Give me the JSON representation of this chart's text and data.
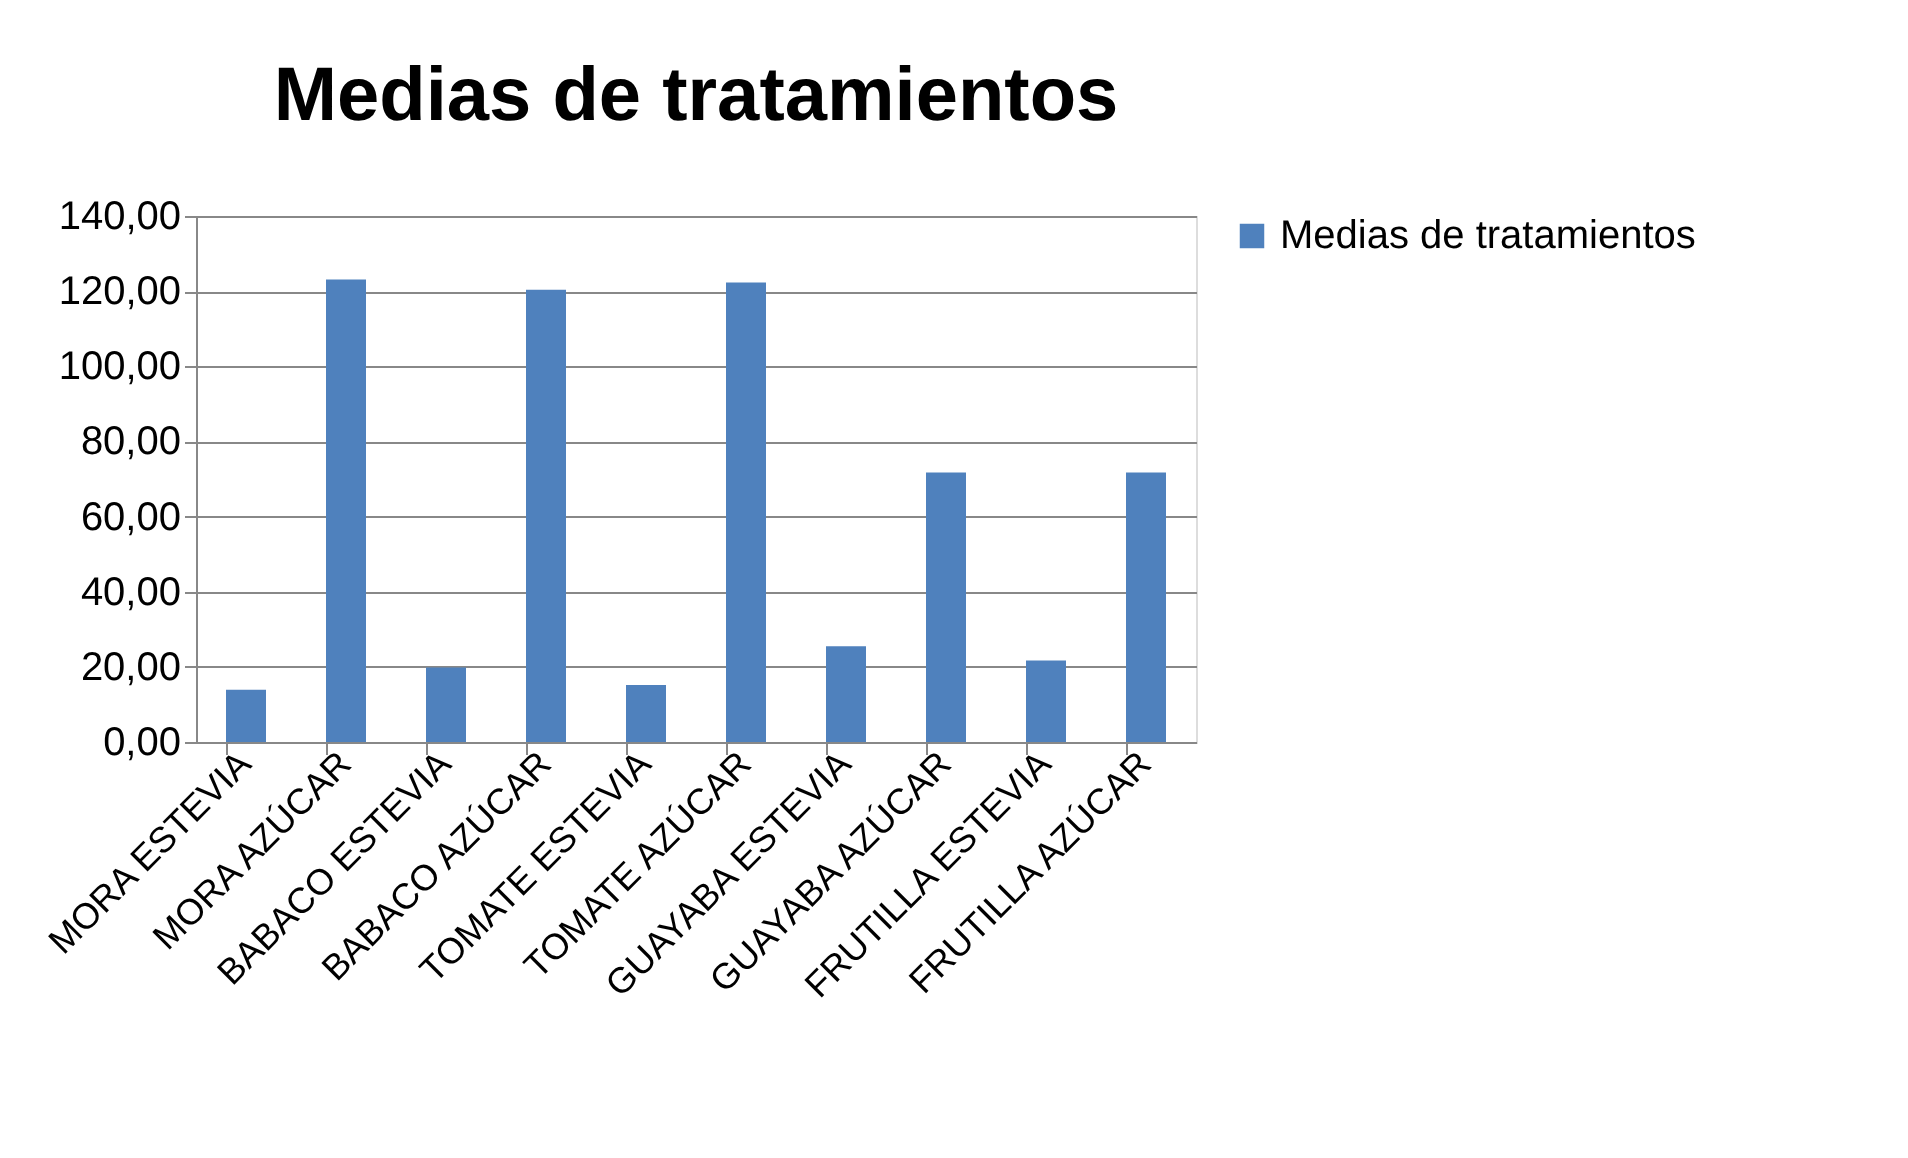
{
  "chart_data": {
    "type": "bar",
    "title": "Medias de tratamientos",
    "categories": [
      "MORA ESTEVIA",
      "MORA AZÚCAR",
      "BABACO ESTEVIA",
      "BABACO AZÚCAR",
      "TOMATE ESTEVIA",
      "TOMATE AZÚCAR",
      "GUAYABA ESTEVIA",
      "GUAYABA AZÚCAR",
      "FRUTILLA ESTEVIA",
      "FRUTILLA AZÚCAR"
    ],
    "series": [
      {
        "name": "Medias de tratamientos",
        "color": "#4f81bd",
        "values": [
          13.9,
          123.1,
          19.8,
          120.4,
          15.2,
          122.3,
          25.5,
          71.7,
          21.7,
          71.7
        ]
      }
    ],
    "ylim": [
      0,
      140
    ],
    "yticks": [
      {
        "value": 0,
        "label": "0,00"
      },
      {
        "value": 20,
        "label": "20,00"
      },
      {
        "value": 40,
        "label": "40,00"
      },
      {
        "value": 60,
        "label": "60,00"
      },
      {
        "value": 80,
        "label": "80,00"
      },
      {
        "value": 100,
        "label": "100,00"
      },
      {
        "value": 120,
        "label": "120,00"
      },
      {
        "value": 140,
        "label": "140,00"
      }
    ],
    "grid": "y",
    "legend": "right"
  }
}
